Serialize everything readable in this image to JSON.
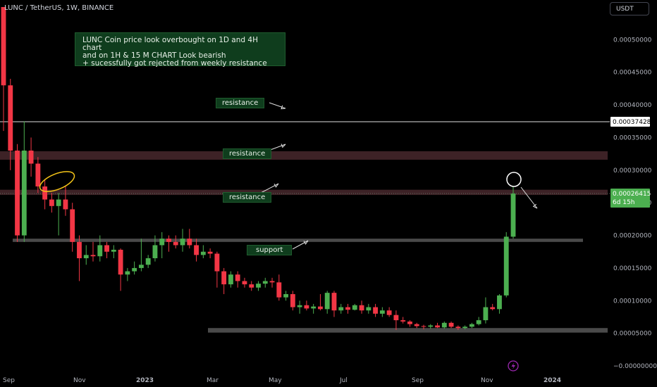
{
  "header": {
    "symbol": "LUNC / TetherUS, 1W, BINANCE",
    "currency_button": "USDT"
  },
  "annotations": {
    "note": "LUNC Coin price look overbought on 1D and 4H chart\nand on 1H & 15 M CHART Look bearish\n+ sucessfully got rejected from weekly resistance",
    "labels": [
      {
        "id": "resistance-1",
        "text": "resistance"
      },
      {
        "id": "resistance-2",
        "text": "resistance"
      },
      {
        "id": "resistance-3",
        "text": "resistance"
      },
      {
        "id": "support",
        "text": "support"
      }
    ]
  },
  "price_badges": {
    "level_line": "0.00037428",
    "current": "0.00026415",
    "countdown": "6d 15h"
  },
  "colors": {
    "up": "#4caf50",
    "down": "#f23645",
    "zone": "#3d2226",
    "support_zone": "#4a4a4a",
    "note_bg": "#0f3d1d"
  },
  "chart_data": {
    "type": "candlestick",
    "ylim": [
      0,
      0.00055
    ],
    "x_ticks": [
      "Sep",
      "Nov",
      "2023",
      "Mar",
      "May",
      "Jul",
      "Sep",
      "Nov",
      "2024"
    ],
    "y_ticks": [
      "0.00050000",
      "0.00045000",
      "0.00040000",
      "0.00035000",
      "0.00030000",
      "0.00025000",
      "0.00020000",
      "0.00015000",
      "0.00010000",
      "0.00005000",
      "−0.00000000"
    ],
    "levels": {
      "resistance_line": 0.00037428,
      "resistance_zone_upper": [
        0.000316,
        0.000329
      ],
      "resistance_zone_lower": [
        0.000262,
        0.00027
      ],
      "support_zone": [
        0.00019,
        0.000195
      ],
      "bottom_support_zone": [
        5.1e-05,
        5.8e-05
      ],
      "current_price": 0.00026415
    },
    "candles": [
      {
        "o": 0.00055,
        "h": 0.00055,
        "l": 0.00036,
        "c": 0.00043
      },
      {
        "o": 0.00043,
        "h": 0.00044,
        "l": 0.0003,
        "c": 0.00033
      },
      {
        "o": 0.00033,
        "h": 0.00034,
        "l": 0.00019,
        "c": 0.0002
      },
      {
        "o": 0.0002,
        "h": 0.000375,
        "l": 0.00019,
        "c": 0.00033
      },
      {
        "o": 0.00033,
        "h": 0.00035,
        "l": 0.00029,
        "c": 0.00031
      },
      {
        "o": 0.00031,
        "h": 0.00032,
        "l": 0.000265,
        "c": 0.000275
      },
      {
        "o": 0.000275,
        "h": 0.000285,
        "l": 0.00024,
        "c": 0.000255
      },
      {
        "o": 0.000255,
        "h": 0.000265,
        "l": 0.000235,
        "c": 0.000245
      },
      {
        "o": 0.000245,
        "h": 0.000265,
        "l": 0.0002,
        "c": 0.000255
      },
      {
        "o": 0.000255,
        "h": 0.000275,
        "l": 0.00023,
        "c": 0.00024
      },
      {
        "o": 0.00024,
        "h": 0.00025,
        "l": 0.000175,
        "c": 0.00019
      },
      {
        "o": 0.00019,
        "h": 0.0002,
        "l": 0.00013,
        "c": 0.000165
      },
      {
        "o": 0.000165,
        "h": 0.000185,
        "l": 0.000155,
        "c": 0.00017
      },
      {
        "o": 0.00017,
        "h": 0.00019,
        "l": 0.00016,
        "c": 0.000168
      },
      {
        "o": 0.000168,
        "h": 0.0002,
        "l": 0.00016,
        "c": 0.000185
      },
      {
        "o": 0.000185,
        "h": 0.00019,
        "l": 0.000165,
        "c": 0.000175
      },
      {
        "o": 0.000175,
        "h": 0.000185,
        "l": 0.000165,
        "c": 0.000178
      },
      {
        "o": 0.000178,
        "h": 0.00018,
        "l": 0.000115,
        "c": 0.00014
      },
      {
        "o": 0.00014,
        "h": 0.00015,
        "l": 0.00013,
        "c": 0.000145
      },
      {
        "o": 0.000145,
        "h": 0.00016,
        "l": 0.00014,
        "c": 0.00015
      },
      {
        "o": 0.00015,
        "h": 0.000195,
        "l": 0.000145,
        "c": 0.000155
      },
      {
        "o": 0.000155,
        "h": 0.00017,
        "l": 0.00015,
        "c": 0.000165
      },
      {
        "o": 0.000165,
        "h": 0.0002,
        "l": 0.00016,
        "c": 0.000185
      },
      {
        "o": 0.000185,
        "h": 0.000205,
        "l": 0.000165,
        "c": 0.000195
      },
      {
        "o": 0.000195,
        "h": 0.0002,
        "l": 0.000175,
        "c": 0.00019
      },
      {
        "o": 0.00019,
        "h": 0.0002,
        "l": 0.00018,
        "c": 0.000185
      },
      {
        "o": 0.000185,
        "h": 0.00021,
        "l": 0.000175,
        "c": 0.000195
      },
      {
        "o": 0.000195,
        "h": 0.00021,
        "l": 0.00018,
        "c": 0.000185
      },
      {
        "o": 0.000185,
        "h": 0.000195,
        "l": 0.00016,
        "c": 0.00017
      },
      {
        "o": 0.00017,
        "h": 0.000185,
        "l": 0.000165,
        "c": 0.000175
      },
      {
        "o": 0.000175,
        "h": 0.00018,
        "l": 0.000165,
        "c": 0.000172
      },
      {
        "o": 0.000172,
        "h": 0.000175,
        "l": 0.00012,
        "c": 0.000145
      },
      {
        "o": 0.000145,
        "h": 0.00015,
        "l": 0.00011,
        "c": 0.000125
      },
      {
        "o": 0.000125,
        "h": 0.000145,
        "l": 0.00012,
        "c": 0.00014
      },
      {
        "o": 0.00014,
        "h": 0.000145,
        "l": 0.00012,
        "c": 0.00013
      },
      {
        "o": 0.00013,
        "h": 0.000135,
        "l": 0.00012,
        "c": 0.000125
      },
      {
        "o": 0.000125,
        "h": 0.00013,
        "l": 0.000115,
        "c": 0.00012
      },
      {
        "o": 0.00012,
        "h": 0.00013,
        "l": 0.000115,
        "c": 0.000126
      },
      {
        "o": 0.000126,
        "h": 0.000135,
        "l": 0.00012,
        "c": 0.00013
      },
      {
        "o": 0.00013,
        "h": 0.000135,
        "l": 0.00012,
        "c": 0.000128
      },
      {
        "o": 0.000128,
        "h": 0.00014,
        "l": 0.0001,
        "c": 0.000105
      },
      {
        "o": 0.000105,
        "h": 0.000115,
        "l": 0.0001,
        "c": 0.00011
      },
      {
        "o": 0.00011,
        "h": 0.000115,
        "l": 8.5e-05,
        "c": 9e-05
      },
      {
        "o": 9e-05,
        "h": 0.0001,
        "l": 8e-05,
        "c": 9.3e-05
      },
      {
        "o": 9.3e-05,
        "h": 0.0001,
        "l": 8.5e-05,
        "c": 8.8e-05
      },
      {
        "o": 8.8e-05,
        "h": 9.5e-05,
        "l": 8e-05,
        "c": 9.1e-05
      },
      {
        "o": 9.1e-05,
        "h": 0.00011,
        "l": 8.5e-05,
        "c": 8.7e-05
      },
      {
        "o": 8.7e-05,
        "h": 0.000115,
        "l": 8e-05,
        "c": 0.000112
      },
      {
        "o": 0.000112,
        "h": 0.000115,
        "l": 7.5e-05,
        "c": 8.5e-05
      },
      {
        "o": 8.5e-05,
        "h": 9.5e-05,
        "l": 8e-05,
        "c": 9e-05
      },
      {
        "o": 9e-05,
        "h": 9.5e-05,
        "l": 8e-05,
        "c": 8.6e-05
      },
      {
        "o": 8.6e-05,
        "h": 9.5e-05,
        "l": 8.5e-05,
        "c": 9.3e-05
      },
      {
        "o": 9.3e-05,
        "h": 0.0001,
        "l": 8e-05,
        "c": 8.5e-05
      },
      {
        "o": 8.5e-05,
        "h": 9.5e-05,
        "l": 8e-05,
        "c": 9e-05
      },
      {
        "o": 9e-05,
        "h": 9.5e-05,
        "l": 7.5e-05,
        "c": 8e-05
      },
      {
        "o": 8e-05,
        "h": 9e-05,
        "l": 7.5e-05,
        "c": 8.5e-05
      },
      {
        "o": 8.5e-05,
        "h": 9e-05,
        "l": 7.5e-05,
        "c": 7.8e-05
      },
      {
        "o": 7.8e-05,
        "h": 8.5e-05,
        "l": 5.5e-05,
        "c": 7e-05
      },
      {
        "o": 7e-05,
        "h": 7.5e-05,
        "l": 6.5e-05,
        "c": 6.8e-05
      },
      {
        "o": 6.8e-05,
        "h": 7e-05,
        "l": 6e-05,
        "c": 6.4e-05
      },
      {
        "o": 6.4e-05,
        "h": 6.6e-05,
        "l": 5.8e-05,
        "c": 6.1e-05
      },
      {
        "o": 6.1e-05,
        "h": 6.3e-05,
        "l": 5.6e-05,
        "c": 6e-05
      },
      {
        "o": 6e-05,
        "h": 6.4e-05,
        "l": 5.7e-05,
        "c": 6.2e-05
      },
      {
        "o": 6.2e-05,
        "h": 6.6e-05,
        "l": 5.8e-05,
        "c": 5.9e-05
      },
      {
        "o": 5.9e-05,
        "h": 6.8e-05,
        "l": 5.7e-05,
        "c": 6.6e-05
      },
      {
        "o": 6.6e-05,
        "h": 6.8e-05,
        "l": 5.8e-05,
        "c": 6e-05
      },
      {
        "o": 6e-05,
        "h": 6.2e-05,
        "l": 5.5e-05,
        "c": 5.8e-05
      },
      {
        "o": 5.8e-05,
        "h": 6.2e-05,
        "l": 5.6e-05,
        "c": 6e-05
      },
      {
        "o": 6e-05,
        "h": 6.6e-05,
        "l": 5.8e-05,
        "c": 6.4e-05
      },
      {
        "o": 6.4e-05,
        "h": 7.5e-05,
        "l": 6.2e-05,
        "c": 7e-05
      },
      {
        "o": 7e-05,
        "h": 0.000105,
        "l": 6.5e-05,
        "c": 9e-05
      },
      {
        "o": 9e-05,
        "h": 9.5e-05,
        "l": 8.5e-05,
        "c": 8.7e-05
      },
      {
        "o": 8.7e-05,
        "h": 0.00011,
        "l": 8e-05,
        "c": 0.000108
      },
      {
        "o": 0.000108,
        "h": 0.000205,
        "l": 0.000105,
        "c": 0.000198
      },
      {
        "o": 0.000198,
        "h": 0.000275,
        "l": 0.000195,
        "c": 0.000264
      }
    ]
  }
}
